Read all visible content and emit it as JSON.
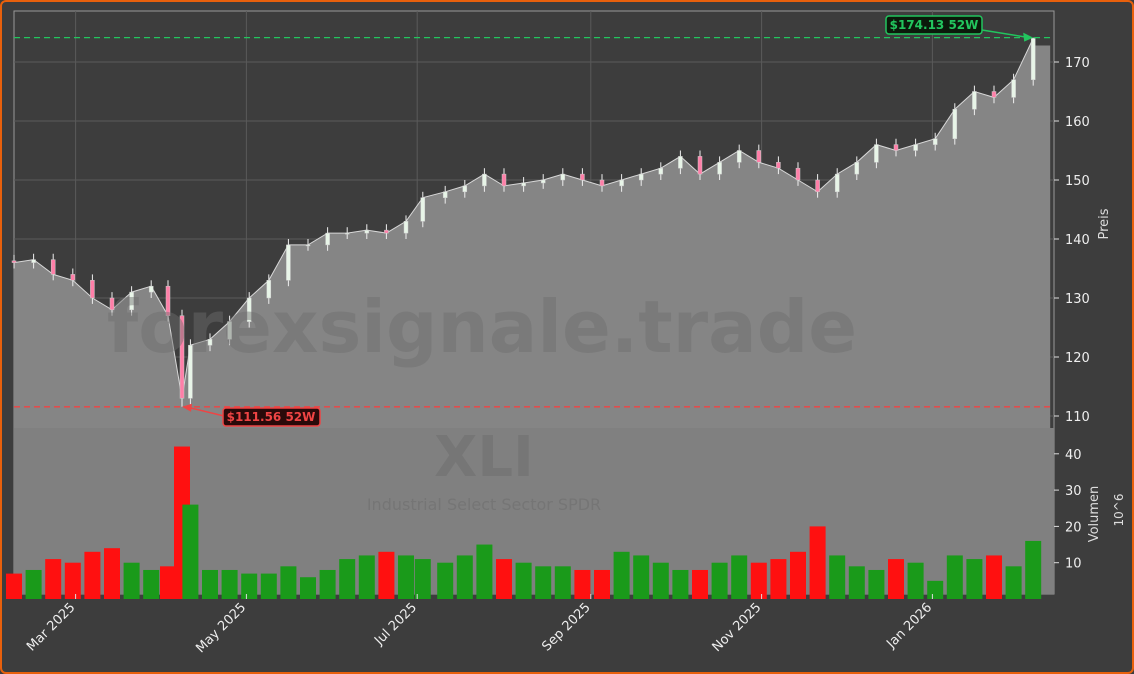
{
  "chart_data": {
    "type": "candlestick",
    "ticker": "XLI",
    "subtitle": "Industrial Select Sector SPDR",
    "watermark": "forexsignale.trade",
    "price_label": "Preis",
    "volume_label": "Volumen",
    "volume_unit": "10^6",
    "price_ticks": [
      110,
      120,
      130,
      140,
      150,
      160,
      170
    ],
    "volume_ticks": [
      10,
      20,
      30,
      40
    ],
    "x_ticks": [
      "Mar 2025",
      "May 2025",
      "Jul 2025",
      "Sep 2025",
      "Nov 2025",
      "Jan 2026"
    ],
    "x_tick_dates": [
      "2025-03-01",
      "2025-05-01",
      "2025-07-01",
      "2025-09-01",
      "2025-11-01",
      "2026-01-01"
    ],
    "ylim": [
      107,
      178
    ],
    "volume_ylim": [
      0,
      45
    ],
    "high_52w": {
      "value": 174.13,
      "label": "$174.13 52W",
      "color": "#22c55e"
    },
    "low_52w": {
      "value": 111.56,
      "label": "$111.56 52W",
      "color": "#ef4444"
    },
    "up_color": "#1a9a1a",
    "down_color": "#ff1010",
    "grid": true,
    "weekly": {
      "dates": [
        "2025-02-07",
        "2025-02-14",
        "2025-02-21",
        "2025-02-28",
        "2025-03-07",
        "2025-03-14",
        "2025-03-21",
        "2025-03-28",
        "2025-04-03",
        "2025-04-08",
        "2025-04-11",
        "2025-04-18",
        "2025-04-25",
        "2025-05-02",
        "2025-05-09",
        "2025-05-16",
        "2025-05-23",
        "2025-05-30",
        "2025-06-06",
        "2025-06-13",
        "2025-06-20",
        "2025-06-27",
        "2025-07-03",
        "2025-07-11",
        "2025-07-18",
        "2025-07-25",
        "2025-08-01",
        "2025-08-08",
        "2025-08-15",
        "2025-08-22",
        "2025-08-29",
        "2025-09-05",
        "2025-09-12",
        "2025-09-19",
        "2025-09-26",
        "2025-10-03",
        "2025-10-10",
        "2025-10-17",
        "2025-10-24",
        "2025-10-31",
        "2025-11-07",
        "2025-11-14",
        "2025-11-21",
        "2025-11-28",
        "2025-12-05",
        "2025-12-12",
        "2025-12-19",
        "2025-12-26",
        "2026-01-02",
        "2026-01-09",
        "2026-01-16",
        "2026-01-23",
        "2026-01-30",
        "2026-02-06"
      ],
      "close": [
        136,
        136.5,
        134,
        133,
        130,
        128,
        131,
        132,
        127,
        113,
        122,
        123,
        126,
        130,
        133,
        139,
        139,
        141,
        141,
        141.5,
        141,
        143,
        147,
        148,
        149,
        151,
        149,
        149.5,
        150,
        151,
        150,
        149,
        150,
        151,
        152,
        154,
        151,
        153,
        155,
        153,
        152,
        150,
        148,
        151,
        153,
        156,
        155,
        156,
        157,
        162,
        165,
        164,
        167,
        174
      ],
      "volume": [
        7,
        8,
        11,
        10,
        13,
        14,
        10,
        8,
        9,
        42,
        26,
        8,
        8,
        7,
        7,
        9,
        6,
        8,
        11,
        12,
        13,
        12,
        11,
        10,
        12,
        15,
        11,
        10,
        9,
        9,
        8,
        8,
        13,
        12,
        10,
        8,
        8,
        10,
        12,
        10,
        11,
        13,
        20,
        12,
        9,
        8,
        11,
        10,
        5,
        12,
        11,
        12,
        9,
        16
      ]
    }
  }
}
